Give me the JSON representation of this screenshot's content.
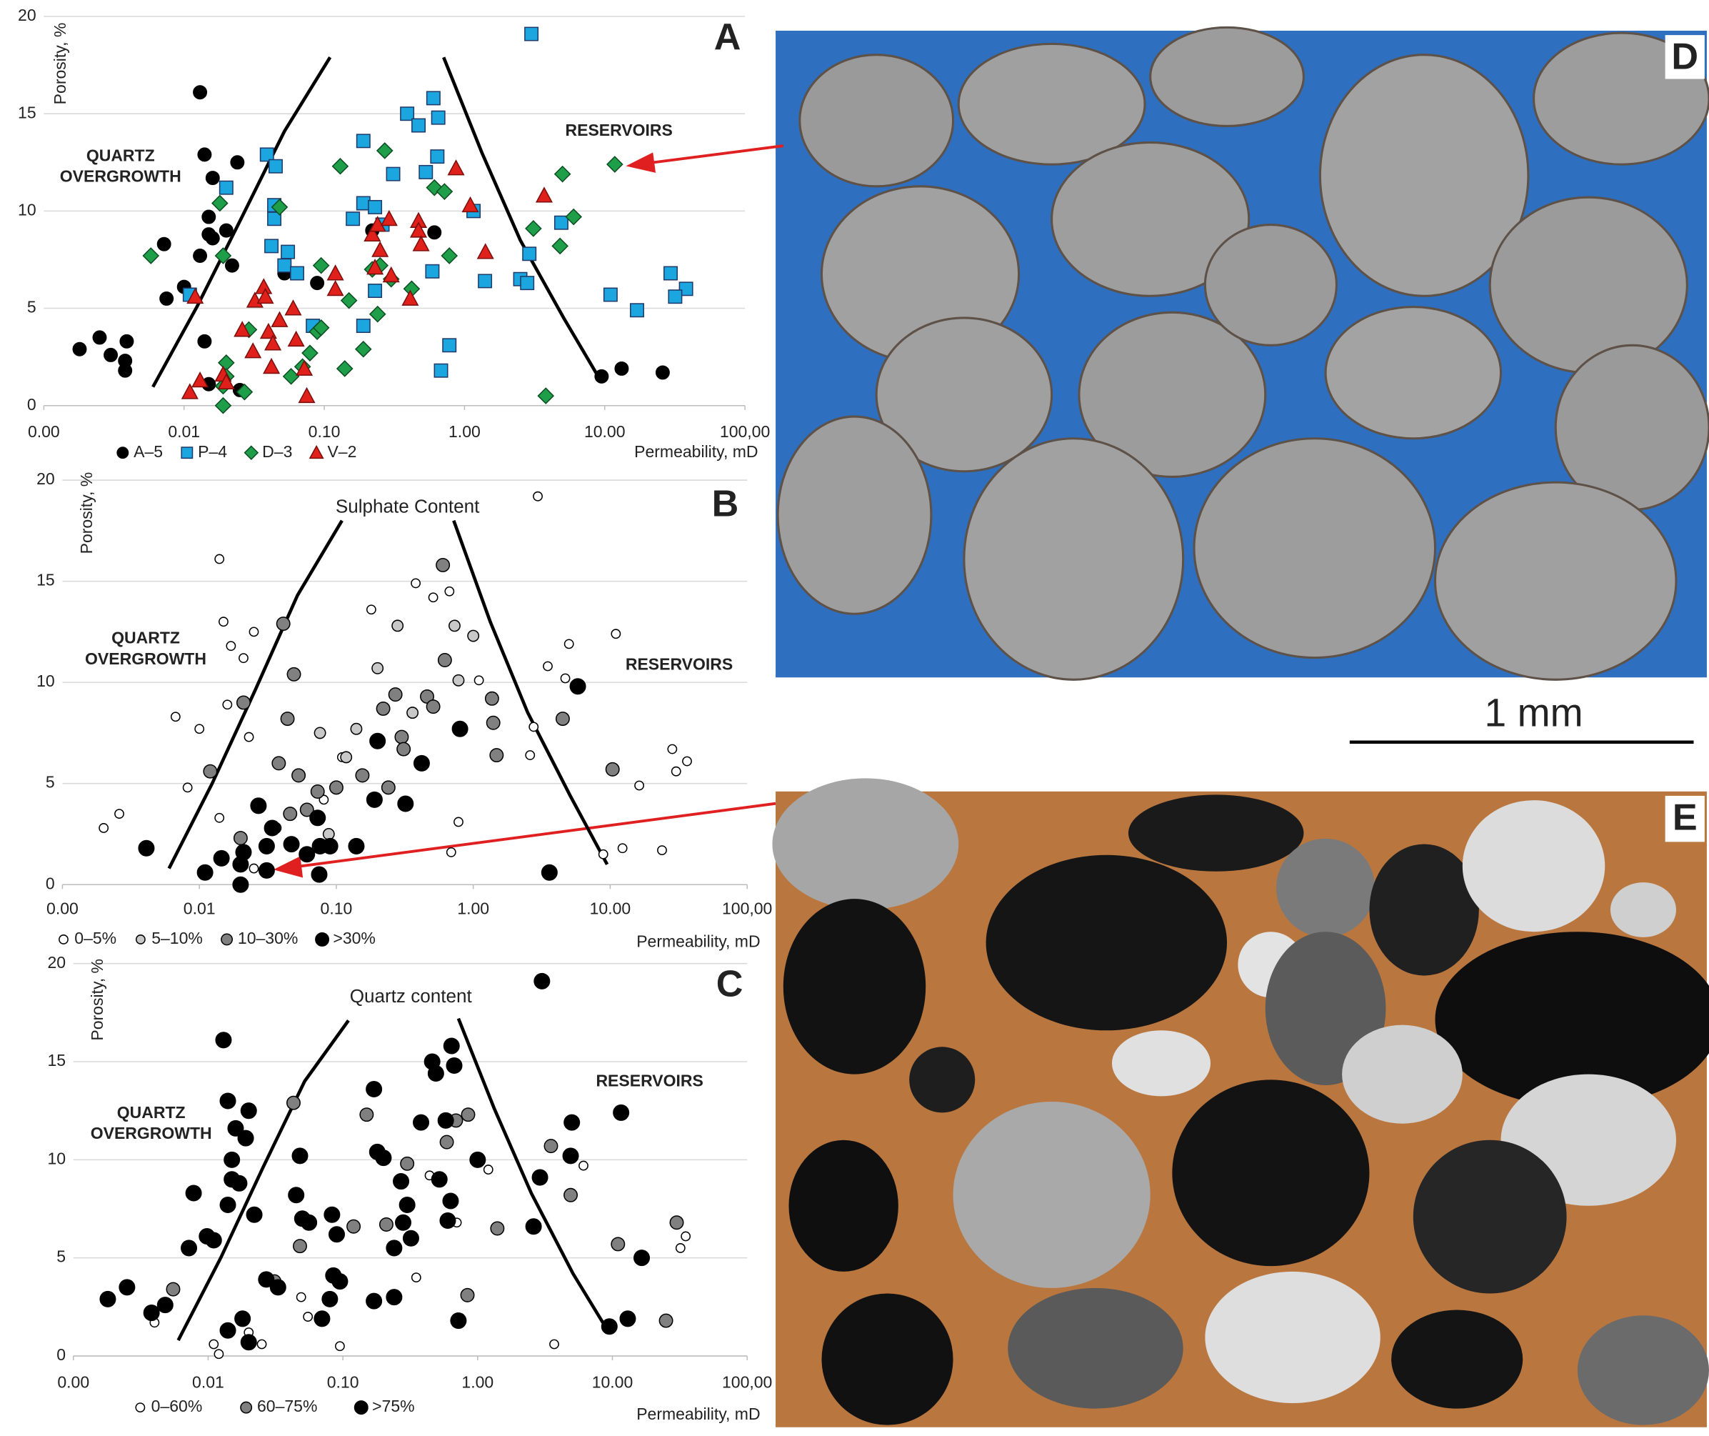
{
  "photos": [
    "D",
    "E"
  ],
  "scale_bar": "1 mm",
  "chart_data": [
    {
      "type": "scatter",
      "panel_label": "A",
      "x_label": "Permeability, mD",
      "y_label": "Porosity, %",
      "xscale": "log",
      "xlim": [
        0.001,
        100
      ],
      "ylim": [
        0,
        20
      ],
      "xticks": [
        {
          "value": 0.001,
          "label": "0.00"
        },
        {
          "value": 0.01,
          "label": "0.01"
        },
        {
          "value": 0.1,
          "label": "0.10"
        },
        {
          "value": 1,
          "label": "1.00"
        },
        {
          "value": 10,
          "label": "10.00"
        },
        {
          "value": 100,
          "label": "100,00"
        }
      ],
      "yticks": [
        0,
        5,
        10,
        15,
        20
      ],
      "grid": true,
      "zone_labels": {
        "left": [
          "QUARTZ",
          "OVERGROWTH"
        ],
        "right": "RESERVOIRS"
      },
      "curves": [
        {
          "x": [
            0.006,
            0.0124,
            0.0255,
            0.052,
            0.11
          ],
          "y": [
            0.96,
            5.1,
            9.6,
            14.1,
            17.9
          ]
        },
        {
          "x": [
            0.71,
            1.33,
            2.5,
            5.1,
            9.5
          ],
          "y": [
            17.9,
            13.0,
            8.5,
            4.5,
            1.2
          ]
        }
      ],
      "series": [
        {
          "name": "A–5",
          "color": "#000000",
          "marker": "circle",
          "x": [
            0.0018,
            0.0025,
            0.003,
            0.0038,
            0.0038,
            0.0039,
            0.0072,
            0.0075,
            0.01,
            0.013,
            0.013,
            0.014,
            0.014,
            0.015,
            0.015,
            0.015,
            0.016,
            0.016,
            0.02,
            0.024,
            0.022,
            0.025,
            0.052,
            0.089,
            0.22,
            0.61,
            9.5,
            13.2,
            25.9
          ],
          "y": [
            2.9,
            3.5,
            2.6,
            2.3,
            1.8,
            3.3,
            8.3,
            5.5,
            6.1,
            16.1,
            7.7,
            3.3,
            12.9,
            1.1,
            9.7,
            8.8,
            8.6,
            11.7,
            9.0,
            12.5,
            7.2,
            0.8,
            6.8,
            6.3,
            9.0,
            8.9,
            1.5,
            1.9,
            1.7
          ]
        },
        {
          "name": "P–4",
          "color": "#1ba6e0",
          "marker": "square",
          "x": [
            3.0,
            0.6,
            0.39,
            0.47,
            0.65,
            0.039,
            0.045,
            0.02,
            0.19,
            0.64,
            0.31,
            0.53,
            0.044,
            0.19,
            0.23,
            1.16,
            0.044,
            0.16,
            0.26,
            0.042,
            0.055,
            0.052,
            0.064,
            0.011,
            2.9,
            4.9,
            2.5,
            2.8,
            1.4,
            0.59,
            0.23,
            0.083,
            0.19,
            0.78,
            0.68,
            11.0,
            17,
            29.5,
            38,
            31.8
          ],
          "y": [
            19.1,
            15.8,
            15.0,
            14.4,
            14.8,
            12.9,
            12.3,
            11.2,
            13.6,
            12.8,
            11.9,
            12.0,
            10.3,
            10.4,
            10.2,
            10.0,
            9.6,
            9.6,
            9.3,
            8.2,
            7.9,
            7.2,
            6.8,
            5.7,
            7.8,
            9.4,
            6.5,
            6.3,
            6.4,
            6.9,
            5.9,
            4.1,
            4.1,
            3.1,
            1.8,
            5.7,
            4.9,
            6.8,
            6.0,
            5.6
          ]
        },
        {
          "name": "D–3",
          "color": "#1f9e4a",
          "marker": "diamond",
          "x": [
            11.8,
            5.0,
            6.0,
            3.1,
            4.8,
            3.8,
            0.27,
            0.13,
            0.61,
            0.72,
            0.018,
            0.048,
            0.0058,
            0.019,
            0.095,
            0.22,
            0.25,
            0.78,
            0.42,
            0.3,
            0.15,
            0.24,
            0.19,
            0.089,
            0.095,
            0.029,
            0.079,
            0.02,
            0.14,
            0.07,
            0.058,
            0.02,
            0.019,
            0.027,
            0.019
          ],
          "y": [
            12.4,
            11.9,
            9.7,
            9.1,
            8.2,
            0.5,
            13.1,
            12.3,
            11.2,
            11.0,
            10.4,
            10.2,
            7.7,
            7.7,
            7.2,
            7.0,
            7.2,
            7.7,
            6.0,
            6.5,
            5.4,
            4.7,
            2.9,
            3.8,
            4.0,
            3.9,
            2.7,
            2.2,
            1.9,
            2.0,
            1.5,
            1.5,
            1.0,
            0.7,
            0
          ]
        },
        {
          "name": "V–2",
          "color": "#e0201b",
          "marker": "triangle",
          "x": [
            0.012,
            0.011,
            0.013,
            0.019,
            0.02,
            0.026,
            0.032,
            0.037,
            0.038,
            0.031,
            0.04,
            0.043,
            0.048,
            0.042,
            0.063,
            0.06,
            0.072,
            0.075,
            0.12,
            0.12,
            0.22,
            0.24,
            0.29,
            0.25,
            0.23,
            0.3,
            0.41,
            0.47,
            0.47,
            0.49,
            0.87,
            1.1,
            1.41,
            3.7
          ],
          "y": [
            5.6,
            0.7,
            1.3,
            1.6,
            1.2,
            3.9,
            5.4,
            6.1,
            5.6,
            2.8,
            3.8,
            3.2,
            4.4,
            2.0,
            3.4,
            5.0,
            1.9,
            0.5,
            6.8,
            6.0,
            8.8,
            9.3,
            9.6,
            8.0,
            7.1,
            6.7,
            5.5,
            9.5,
            9.0,
            8.3,
            12.2,
            10.3,
            7.9,
            10.8
          ]
        }
      ]
    },
    {
      "type": "scatter",
      "panel_label": "B",
      "title": "Sulphate Content",
      "x_label": "Permeability, mD",
      "y_label": "Porosity, %",
      "xscale": "log",
      "xlim": [
        0.001,
        100
      ],
      "ylim": [
        0,
        20
      ],
      "xticks": [
        {
          "value": 0.001,
          "label": "0.00"
        },
        {
          "value": 0.01,
          "label": "0.01"
        },
        {
          "value": 0.1,
          "label": "0.10"
        },
        {
          "value": 1,
          "label": "1.00"
        },
        {
          "value": 10,
          "label": "10.00"
        },
        {
          "value": 100,
          "label": "100,00"
        }
      ],
      "yticks": [
        0,
        5,
        10,
        15,
        20
      ],
      "grid": true,
      "zone_labels": {
        "left": [
          "QUARTZ",
          "OVERGROWTH"
        ],
        "right": "RESERVOIRS"
      },
      "curves": [
        {
          "x": [
            0.006,
            0.0124,
            0.0255,
            0.052,
            0.11
          ],
          "y": [
            0.8,
            5.0,
            9.6,
            14.3,
            18.0
          ]
        },
        {
          "x": [
            0.72,
            1.33,
            2.5,
            5.1,
            9.5
          ],
          "y": [
            18.0,
            13.0,
            8.5,
            4.4,
            1.0
          ]
        }
      ],
      "series": [
        {
          "name": "0–5%",
          "color": "#ffffff",
          "marker": "circle",
          "x": [
            0.002,
            0.0026,
            0.0067,
            0.0082,
            0.01,
            0.014,
            0.015,
            0.017,
            0.016,
            0.021,
            0.023,
            0.025,
            0.014,
            0.063,
            0.081,
            0.11,
            0.18,
            0.38,
            0.51,
            0.67,
            0.69,
            0.78,
            1.1,
            2.96,
            2.76,
            2.6,
            3.5,
            5.0,
            4.7,
            8.9,
            12.3,
            16.3,
            11.0,
            23.9,
            28.4,
            30.3,
            36.4,
            0.025
          ],
          "y": [
            2.8,
            3.5,
            8.3,
            4.8,
            7.7,
            16.1,
            13.0,
            11.8,
            8.9,
            11.2,
            7.3,
            12.5,
            3.3,
            1.5,
            4.2,
            6.3,
            13.6,
            14.9,
            14.2,
            14.5,
            1.6,
            3.1,
            10.1,
            19.2,
            7.8,
            6.4,
            10.8,
            11.9,
            10.2,
            1.5,
            1.8,
            4.9,
            12.4,
            1.7,
            6.7,
            5.6,
            6.1,
            0.8
          ]
        },
        {
          "name": "5–10%",
          "color": "#c8c8c8",
          "marker": "circle",
          "x": [
            0.14,
            0.118,
            0.2,
            0.28,
            0.36,
            0.73,
            0.78,
            1.0,
            0.076,
            0.036,
            0.088
          ],
          "y": [
            7.7,
            6.3,
            10.7,
            12.8,
            8.5,
            12.8,
            10.1,
            12.3,
            7.5,
            2.8,
            2.5
          ]
        },
        {
          "name": "10–30%",
          "color": "#808080",
          "marker": "circle",
          "x": [
            0.041,
            0.049,
            0.021,
            0.012,
            0.044,
            0.038,
            0.053,
            0.046,
            0.061,
            0.073,
            0.1,
            0.155,
            0.22,
            0.27,
            0.3,
            0.31,
            0.24,
            0.62,
            0.46,
            0.51,
            0.6,
            1.37,
            1.4,
            1.48,
            4.5,
            10.4,
            0.02
          ],
          "y": [
            12.9,
            10.4,
            9.0,
            5.6,
            8.2,
            6.0,
            5.4,
            3.5,
            3.7,
            4.6,
            4.8,
            5.4,
            8.7,
            9.4,
            7.3,
            6.7,
            4.8,
            11.1,
            9.3,
            8.8,
            15.8,
            9.2,
            8.0,
            6.4,
            8.2,
            5.7,
            2.3
          ]
        },
        {
          "name": ">30%",
          "color": "#000000",
          "marker": "circle",
          "x": [
            0.0041,
            0.011,
            0.0145,
            0.02,
            0.02,
            0.021,
            0.027,
            0.031,
            0.031,
            0.034,
            0.047,
            0.061,
            0.075,
            0.073,
            0.076,
            0.09,
            0.14,
            0.19,
            0.2,
            0.32,
            0.42,
            0.8,
            5.8,
            3.6
          ],
          "y": [
            1.8,
            0.6,
            1.3,
            0,
            1.0,
            1.6,
            3.9,
            0.7,
            1.9,
            2.8,
            2.0,
            1.5,
            0.5,
            3.3,
            1.9,
            1.9,
            1.9,
            4.2,
            7.1,
            4.0,
            6.0,
            7.7,
            9.8,
            0.6
          ]
        }
      ]
    },
    {
      "type": "scatter",
      "panel_label": "C",
      "title": "Quartz content",
      "x_label": "Permeability, mD",
      "y_label": "Porosity, %",
      "xscale": "log",
      "xlim": [
        0.001,
        100
      ],
      "ylim": [
        0,
        20
      ],
      "xticks": [
        {
          "value": 0.001,
          "label": "0.00"
        },
        {
          "value": 0.01,
          "label": "0.01"
        },
        {
          "value": 0.1,
          "label": "0.10"
        },
        {
          "value": 1,
          "label": "1.00"
        },
        {
          "value": 10,
          "label": "10.00"
        },
        {
          "value": 100,
          "label": "100,00"
        }
      ],
      "yticks": [
        0,
        5,
        10,
        15,
        20
      ],
      "grid": true,
      "zone_labels": {
        "left": [
          "QUARTZ",
          "OVERGROWTH"
        ],
        "right": "RESERVOIRS"
      },
      "curves": [
        {
          "x": [
            0.006,
            0.0124,
            0.0255,
            0.052,
            0.11
          ],
          "y": [
            0.8,
            5.0,
            9.6,
            14.0,
            17.1
          ]
        },
        {
          "x": [
            0.72,
            1.33,
            2.5,
            5.1,
            8.5
          ],
          "y": [
            17.2,
            12.6,
            8.3,
            4.2,
            1.7
          ]
        }
      ],
      "series": [
        {
          "name": "0–60%",
          "color": "#ffffff",
          "marker": "circle",
          "x": [
            0.004,
            0.011,
            0.02,
            0.025,
            0.03,
            0.049,
            0.055,
            0.095,
            0.35,
            0.44,
            1.2,
            6.1,
            3.7,
            35,
            32,
            0.012,
            0.7
          ],
          "y": [
            1.7,
            0.6,
            1.2,
            0.6,
            3.8,
            3.0,
            2.0,
            0.5,
            4.0,
            9.2,
            9.5,
            9.7,
            0.6,
            6.1,
            5.5,
            0.1,
            6.8
          ]
        },
        {
          "name": "60–75%",
          "color": "#808080",
          "marker": "circle",
          "x": [
            0.0055,
            0.043,
            0.031,
            0.048,
            0.15,
            0.21,
            0.3,
            0.59,
            0.69,
            0.84,
            0.85,
            1.4,
            3.5,
            4.9,
            11,
            25,
            30,
            0.12
          ],
          "y": [
            3.4,
            12.9,
            3.8,
            5.6,
            12.3,
            6.7,
            9.8,
            10.9,
            12.0,
            3.1,
            12.3,
            6.5,
            10.7,
            8.2,
            5.7,
            1.8,
            6.8,
            6.6
          ]
        },
        {
          "name": ">75%",
          "color": "#000000",
          "marker": "circle",
          "x": [
            0.0018,
            0.0025,
            0.0038,
            0.0048,
            0.0078,
            0.0072,
            0.0098,
            0.011,
            0.013,
            0.014,
            0.014,
            0.015,
            0.016,
            0.015,
            0.017,
            0.019,
            0.02,
            0.022,
            0.014,
            0.018,
            0.02,
            0.027,
            0.033,
            0.045,
            0.048,
            0.05,
            0.056,
            0.083,
            0.09,
            0.095,
            0.085,
            0.08,
            0.07,
            0.17,
            0.18,
            0.2,
            0.27,
            0.3,
            0.32,
            0.28,
            0.24,
            0.17,
            0.38,
            0.46,
            0.49,
            0.58,
            0.64,
            0.67,
            0.52,
            0.63,
            0.72,
            1.0,
            2.6,
            3.0,
            2.9,
            5.0,
            4.9,
            11.6,
            16.5,
            9.5,
            13,
            0.6,
            0.24
          ],
          "y": [
            2.9,
            3.5,
            2.2,
            2.6,
            8.3,
            5.5,
            6.1,
            5.9,
            16.1,
            13.0,
            7.7,
            9.0,
            11.6,
            10.0,
            8.8,
            11.1,
            12.5,
            7.2,
            1.3,
            1.9,
            0.7,
            3.9,
            3.5,
            8.2,
            10.2,
            7.0,
            6.8,
            7.2,
            6.2,
            3.8,
            4.1,
            2.9,
            1.9,
            13.6,
            10.4,
            10.1,
            8.9,
            7.7,
            6.0,
            6.8,
            5.5,
            2.8,
            11.9,
            15.0,
            14.4,
            12.0,
            15.8,
            14.8,
            9.0,
            7.9,
            1.8,
            10.0,
            6.6,
            19.1,
            9.1,
            11.9,
            10.2,
            12.4,
            5.0,
            1.5,
            1.9,
            6.9,
            3.0
          ]
        }
      ]
    }
  ]
}
